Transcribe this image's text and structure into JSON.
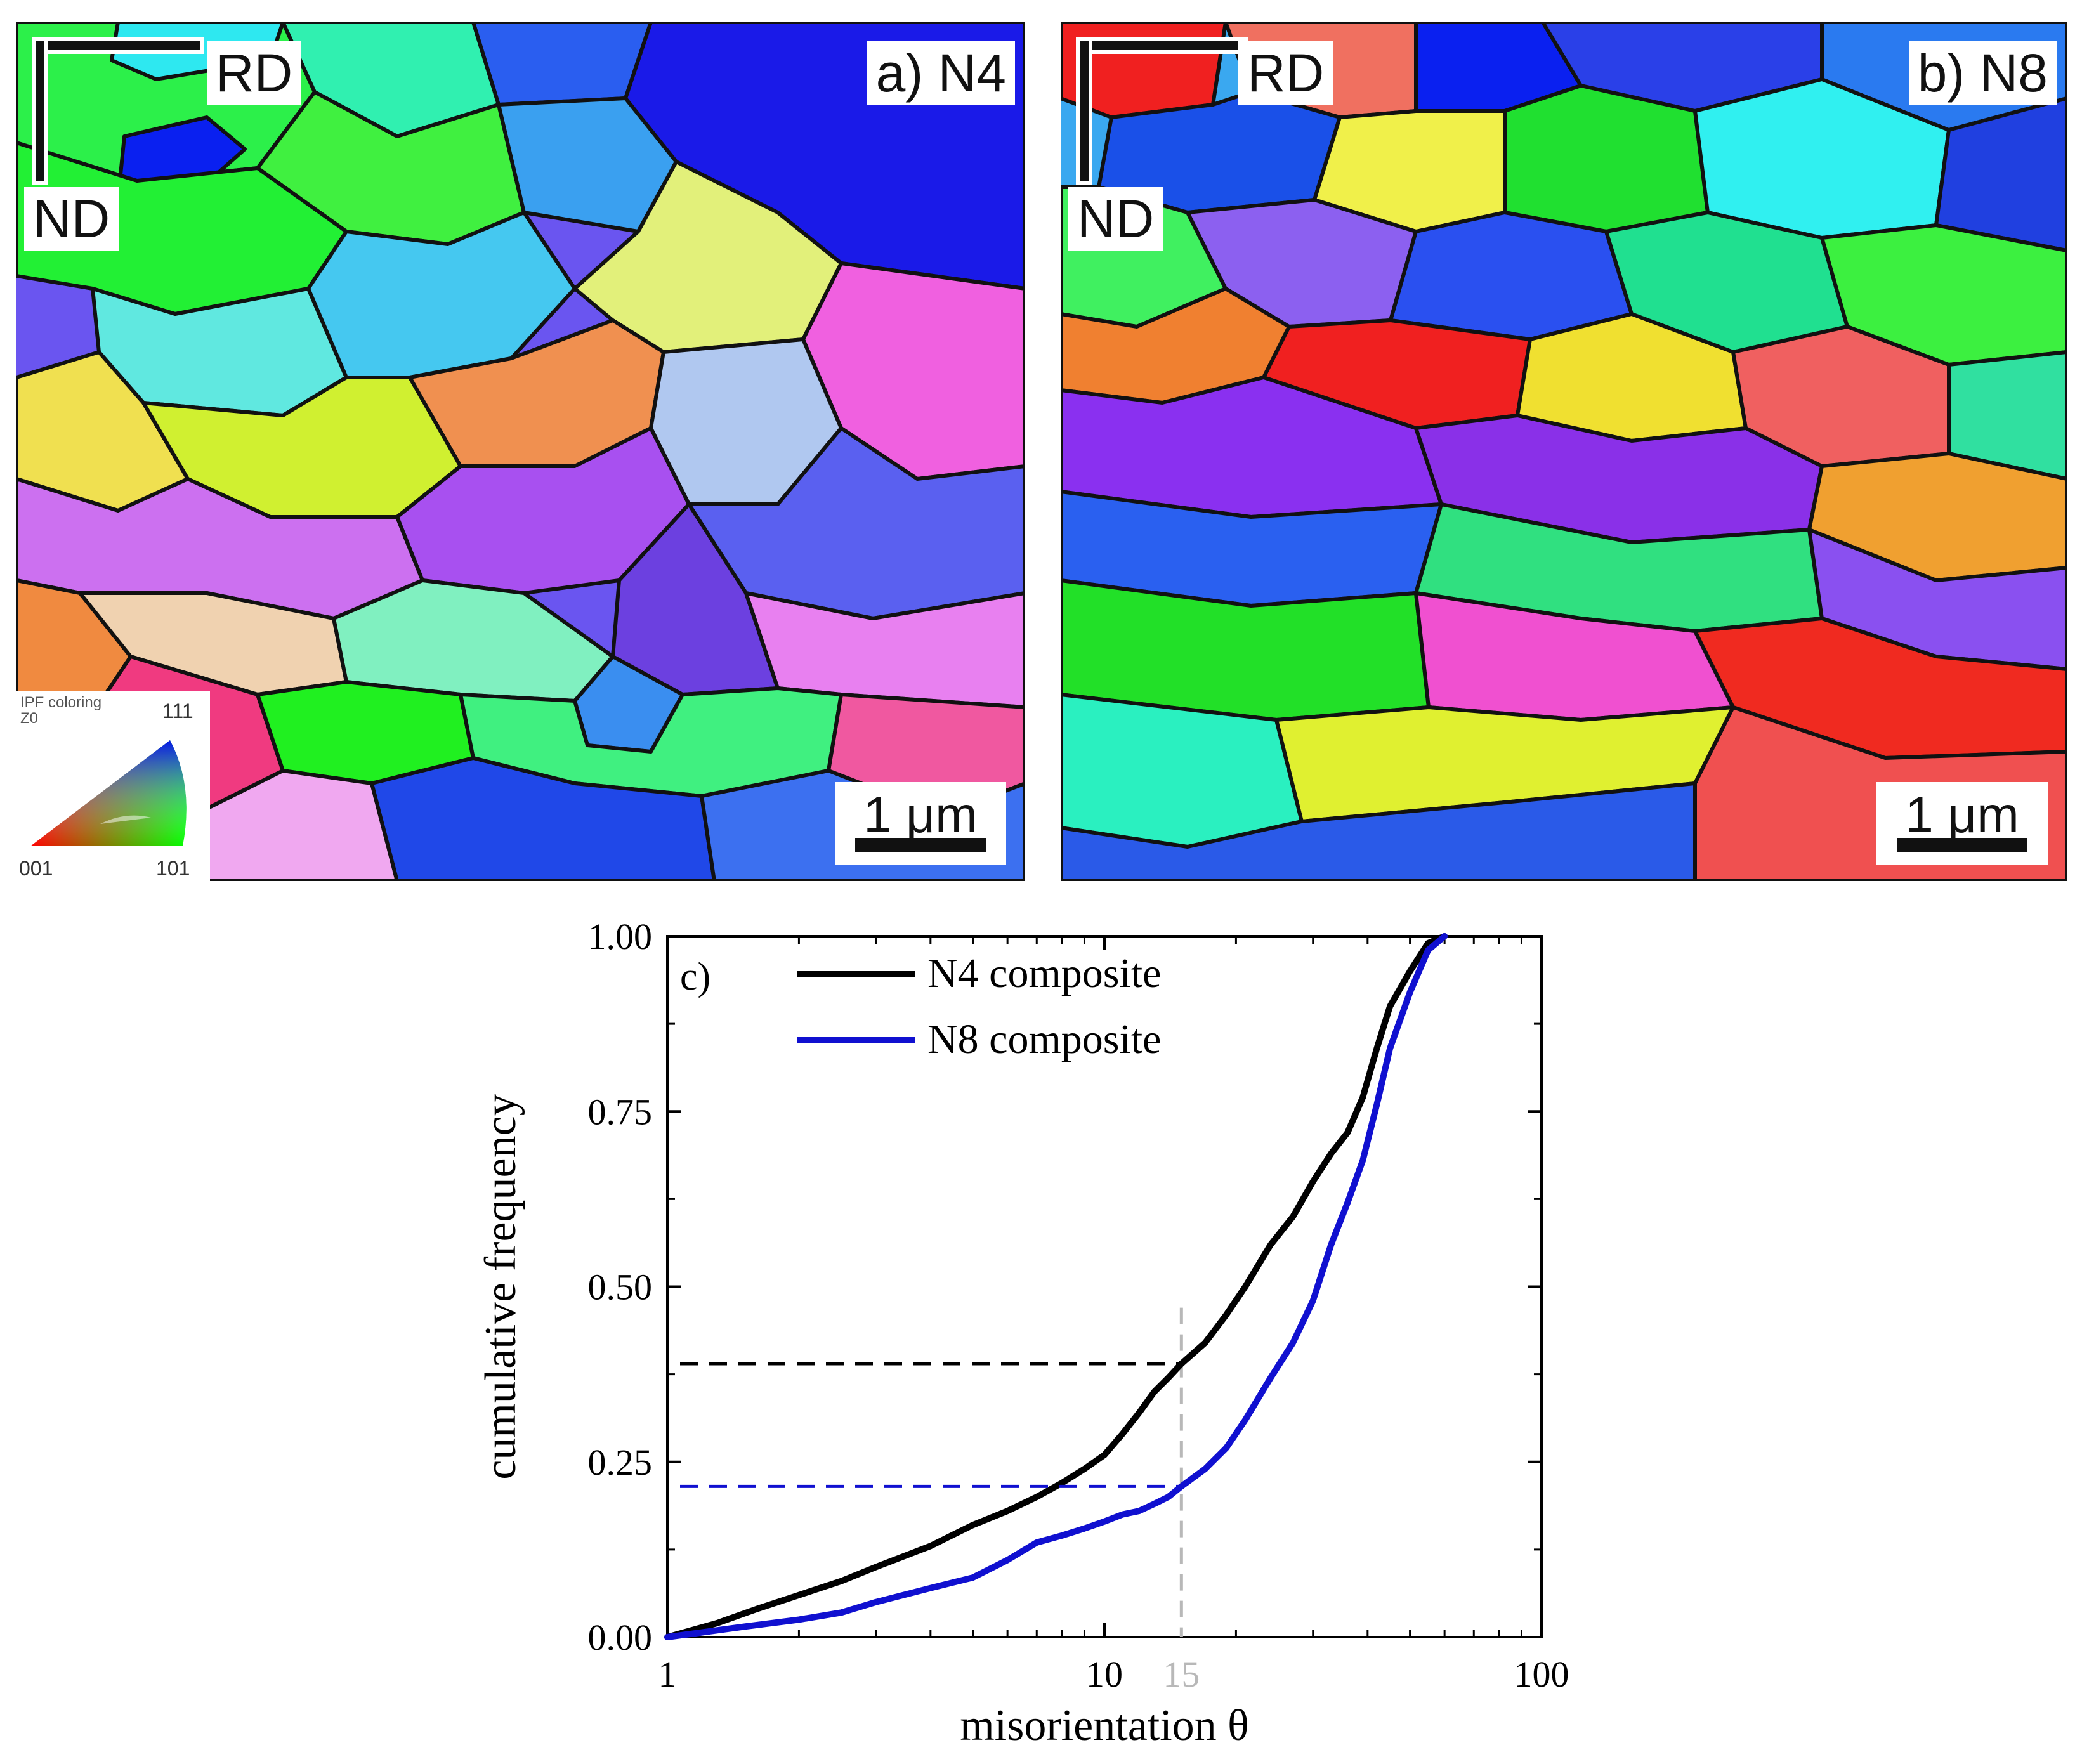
{
  "panel_a": {
    "label": "a) N4",
    "dir_x": "RD",
    "dir_y": "ND",
    "scale": "1 μm",
    "legend": {
      "title_1": "IPF coloring",
      "title_2": "Z0",
      "pole_111": "111",
      "pole_001": "001",
      "pole_101": "101"
    }
  },
  "panel_b": {
    "label": "b) N8",
    "dir_x": "RD",
    "dir_y": "ND",
    "scale": "1 μm"
  },
  "chart_data": {
    "type": "line",
    "panel_label": "c)",
    "xlabel": "misorientation θ",
    "ylabel": "cumulative frequency",
    "xscale": "log",
    "xlim": [
      1,
      100
    ],
    "ylim": [
      0,
      1
    ],
    "xticks": [
      1,
      10,
      100
    ],
    "xtick_labels": [
      "1",
      "10",
      "100"
    ],
    "yticks": [
      0,
      0.25,
      0.5,
      0.75,
      1.0
    ],
    "ytick_labels": [
      "0.00",
      "0.25",
      "0.50",
      "0.75",
      "1.00"
    ],
    "marker_x": 15,
    "marker_x_label": "15",
    "legend_position": "top-left",
    "colors": {
      "N4": "#000000",
      "N8": "#1010d0",
      "marker": "#b8b8b8"
    },
    "series": [
      {
        "name": "N4 composite",
        "threshold_y": 0.39,
        "x": [
          1,
          1.3,
          1.6,
          2,
          2.5,
          3,
          4,
          5,
          6,
          7,
          8,
          9,
          10,
          11,
          12,
          13,
          14,
          15,
          17,
          19,
          21,
          24,
          27,
          30,
          33,
          36,
          39,
          42,
          45,
          50,
          55,
          60
        ],
        "y": [
          0,
          0.02,
          0.04,
          0.06,
          0.08,
          0.1,
          0.13,
          0.16,
          0.18,
          0.2,
          0.22,
          0.24,
          0.26,
          0.29,
          0.32,
          0.35,
          0.37,
          0.39,
          0.42,
          0.46,
          0.5,
          0.56,
          0.6,
          0.65,
          0.69,
          0.72,
          0.77,
          0.84,
          0.9,
          0.95,
          0.99,
          1.0
        ]
      },
      {
        "name": "N8 composite",
        "threshold_y": 0.215,
        "x": [
          1,
          1.5,
          2,
          2.5,
          3,
          4,
          5,
          6,
          7,
          8,
          9,
          10,
          11,
          12,
          13,
          14,
          15,
          17,
          19,
          21,
          24,
          27,
          30,
          33,
          36,
          39,
          42,
          45,
          50,
          55,
          60
        ],
        "y": [
          0,
          0.015,
          0.025,
          0.035,
          0.05,
          0.07,
          0.085,
          0.11,
          0.135,
          0.145,
          0.155,
          0.165,
          0.175,
          0.18,
          0.19,
          0.2,
          0.215,
          0.24,
          0.27,
          0.31,
          0.37,
          0.42,
          0.48,
          0.56,
          0.62,
          0.68,
          0.76,
          0.84,
          0.92,
          0.98,
          1.0
        ]
      }
    ]
  }
}
